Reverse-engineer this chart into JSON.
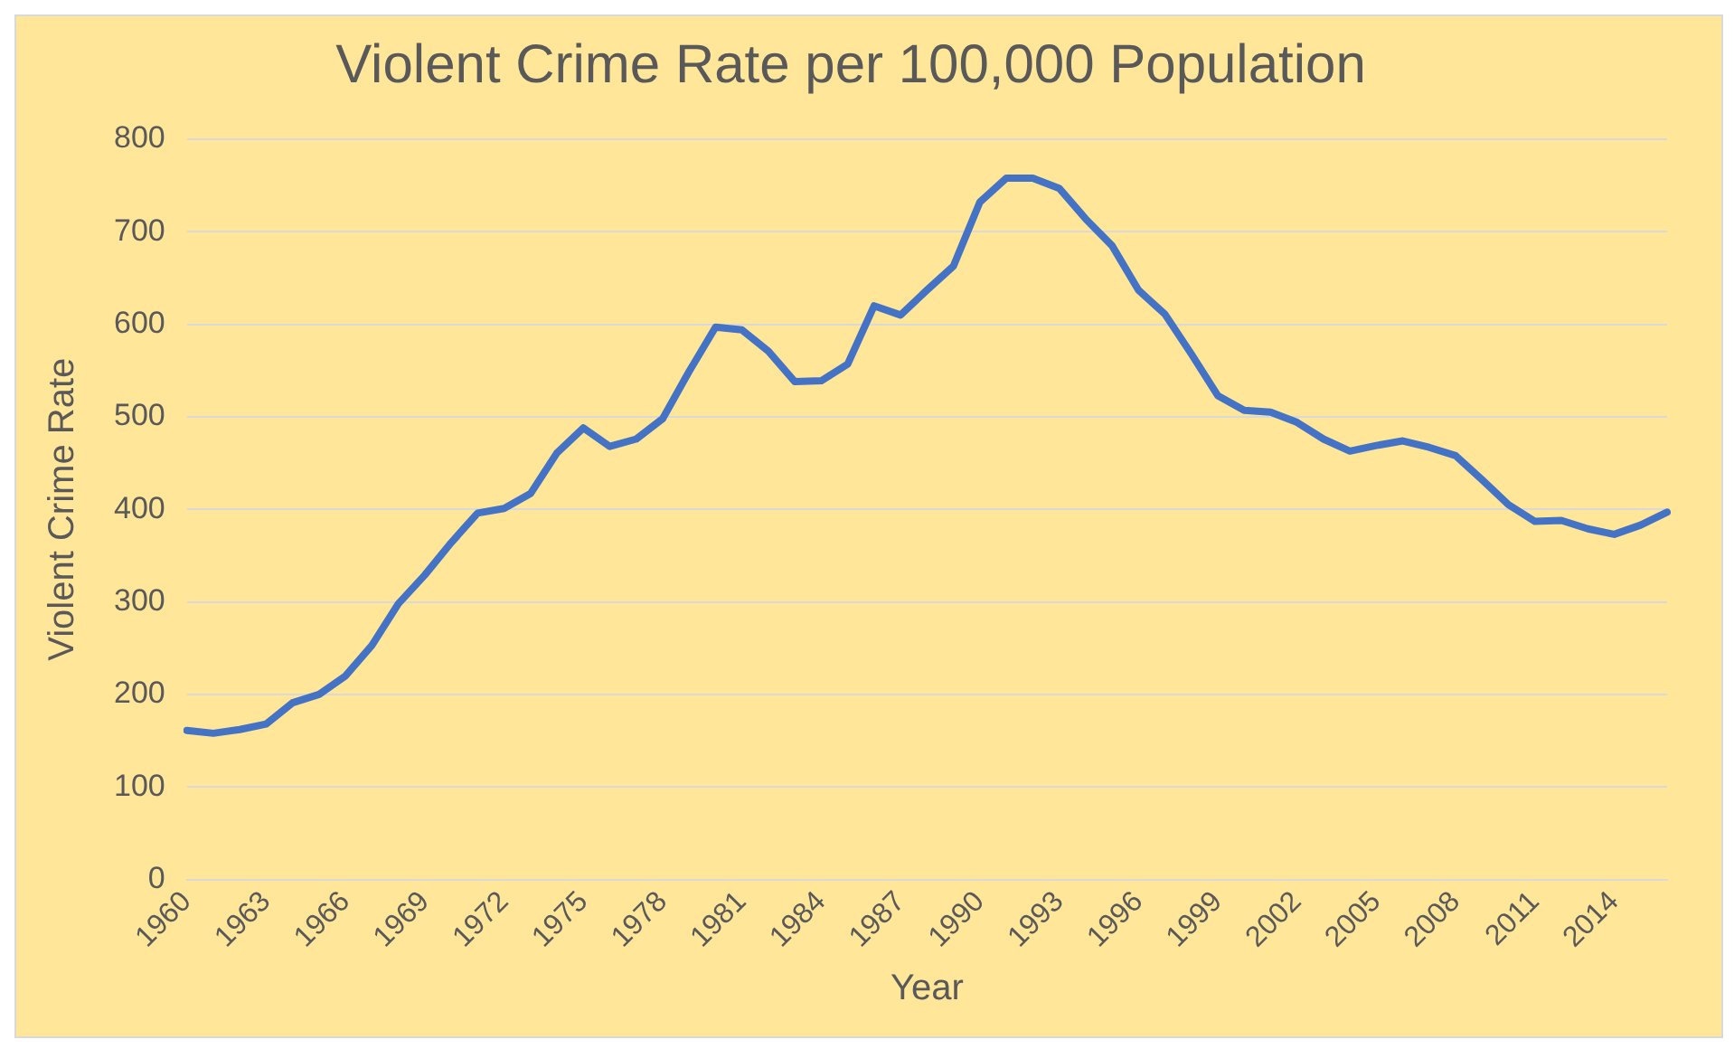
{
  "chart_data": {
    "type": "line",
    "title": "Violent Crime Rate per 100,000 Population",
    "xlabel": "Year",
    "ylabel": "Violent Crime Rate",
    "categories": [
      "1960",
      null,
      null,
      "1963",
      null,
      null,
      "1966",
      null,
      null,
      "1969",
      null,
      null,
      "1972",
      null,
      null,
      "1975",
      null,
      null,
      "1978",
      null,
      null,
      "1981",
      null,
      null,
      "1984",
      null,
      null,
      "1987",
      null,
      null,
      "1990",
      null,
      null,
      "1993",
      null,
      null,
      "1996",
      null,
      null,
      "1999",
      null,
      null,
      "2002",
      null,
      null,
      "2005",
      null,
      null,
      "2008",
      null,
      null,
      "2011",
      null,
      null,
      "2014",
      null,
      null
    ],
    "series": [
      {
        "color": "#4472c4",
        "values": [
          161,
          158,
          162,
          168,
          191,
          200,
          220,
          253,
          298,
          329,
          364,
          396,
          401,
          417,
          461,
          488,
          468,
          476,
          498,
          549,
          597,
          594,
          571,
          538,
          539,
          557,
          620,
          610,
          637,
          663,
          732,
          758,
          758,
          747,
          714,
          685,
          637,
          611,
          568,
          523,
          507,
          505,
          494,
          476,
          463,
          469,
          474,
          467,
          458,
          432,
          405,
          387,
          388,
          379,
          373,
          383,
          397
        ]
      }
    ],
    "ylim": [
      0,
      800
    ],
    "yticks": [
      0,
      100,
      200,
      300,
      400,
      500,
      600,
      700,
      800
    ],
    "grid": "y",
    "legend": false,
    "marker": "none",
    "line_style": "solid"
  }
}
